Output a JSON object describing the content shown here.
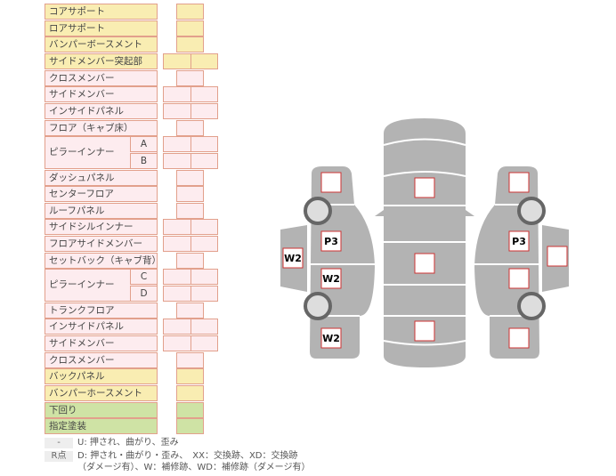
{
  "parts": [
    {
      "label": "コアサポート",
      "color": "y",
      "cells": 1
    },
    {
      "label": "ロアサポート",
      "color": "y",
      "cells": 1
    },
    {
      "label": "バンパーボースメント",
      "color": "y",
      "cells": 1
    },
    {
      "label": "サイドメンバー突起部",
      "color": "y",
      "cells": 2
    },
    {
      "label": "クロスメンバー",
      "color": "p",
      "cells": 1
    },
    {
      "label": "サイドメンバー",
      "color": "p",
      "cells": 2
    },
    {
      "label": "インサイドパネル",
      "color": "p",
      "cells": 2
    },
    {
      "label": "フロア（キャブ床）",
      "color": "p",
      "cells": 1
    },
    {
      "label": "ピラーインナー",
      "color": "p",
      "cells": 2,
      "subs": [
        "A",
        "B"
      ]
    },
    {
      "label": "ダッシュパネル",
      "color": "p",
      "cells": 1
    },
    {
      "label": "センターフロア",
      "color": "p",
      "cells": 1
    },
    {
      "label": "ルーフパネル",
      "color": "p",
      "cells": 1
    },
    {
      "label": "サイドシルインナー",
      "color": "p",
      "cells": 2
    },
    {
      "label": "フロアサイドメンバー",
      "color": "p",
      "cells": 2
    },
    {
      "label": "セットバック（キャブ背）",
      "color": "p",
      "cells": 1
    },
    {
      "label": "ピラーインナー",
      "color": "p",
      "cells": 2,
      "subs": [
        "C",
        "D"
      ]
    },
    {
      "label": "トランクフロア",
      "color": "p",
      "cells": 1
    },
    {
      "label": "インサイドパネル",
      "color": "p",
      "cells": 2
    },
    {
      "label": "サイドメンバー",
      "color": "p",
      "cells": 2
    },
    {
      "label": "クロスメンバー",
      "color": "p",
      "cells": 1
    },
    {
      "label": "バックパネル",
      "color": "y",
      "cells": 1
    },
    {
      "label": "バンパーホースメント",
      "color": "y",
      "cells": 1
    },
    {
      "label": "下回り",
      "color": "g",
      "cells": 1
    },
    {
      "label": "指定塗装",
      "color": "g",
      "cells": 1
    }
  ],
  "diagram": {
    "marks": [
      {
        "area": "left-front-fender",
        "value": ""
      },
      {
        "area": "left-front-door",
        "value": "P3"
      },
      {
        "area": "left-rear-door",
        "value": "W2"
      },
      {
        "area": "left-rear-fender",
        "value": "W2"
      },
      {
        "area": "left-outer-panel",
        "value": "W2"
      },
      {
        "area": "center-front",
        "value": ""
      },
      {
        "area": "center-middle",
        "value": ""
      },
      {
        "area": "center-rear",
        "value": ""
      },
      {
        "area": "right-front-fender",
        "value": ""
      },
      {
        "area": "right-front-door",
        "value": "P3"
      },
      {
        "area": "right-rear-door",
        "value": ""
      },
      {
        "area": "right-rear-fender",
        "value": ""
      },
      {
        "area": "right-outer-panel",
        "value": ""
      }
    ],
    "body_color": "#b3b3b3",
    "mark_border": "#cc3333"
  },
  "legend": [
    {
      "key": "-",
      "text": "U: 押され、曲がり、歪み"
    },
    {
      "key": "R点",
      "text": "D: 押され・曲がり・歪み、　XX：交換跡、XD：交換跡",
      "text2": "（ダメージ有）、W：補修跡、WD：補修跡（ダメージ有）"
    }
  ]
}
